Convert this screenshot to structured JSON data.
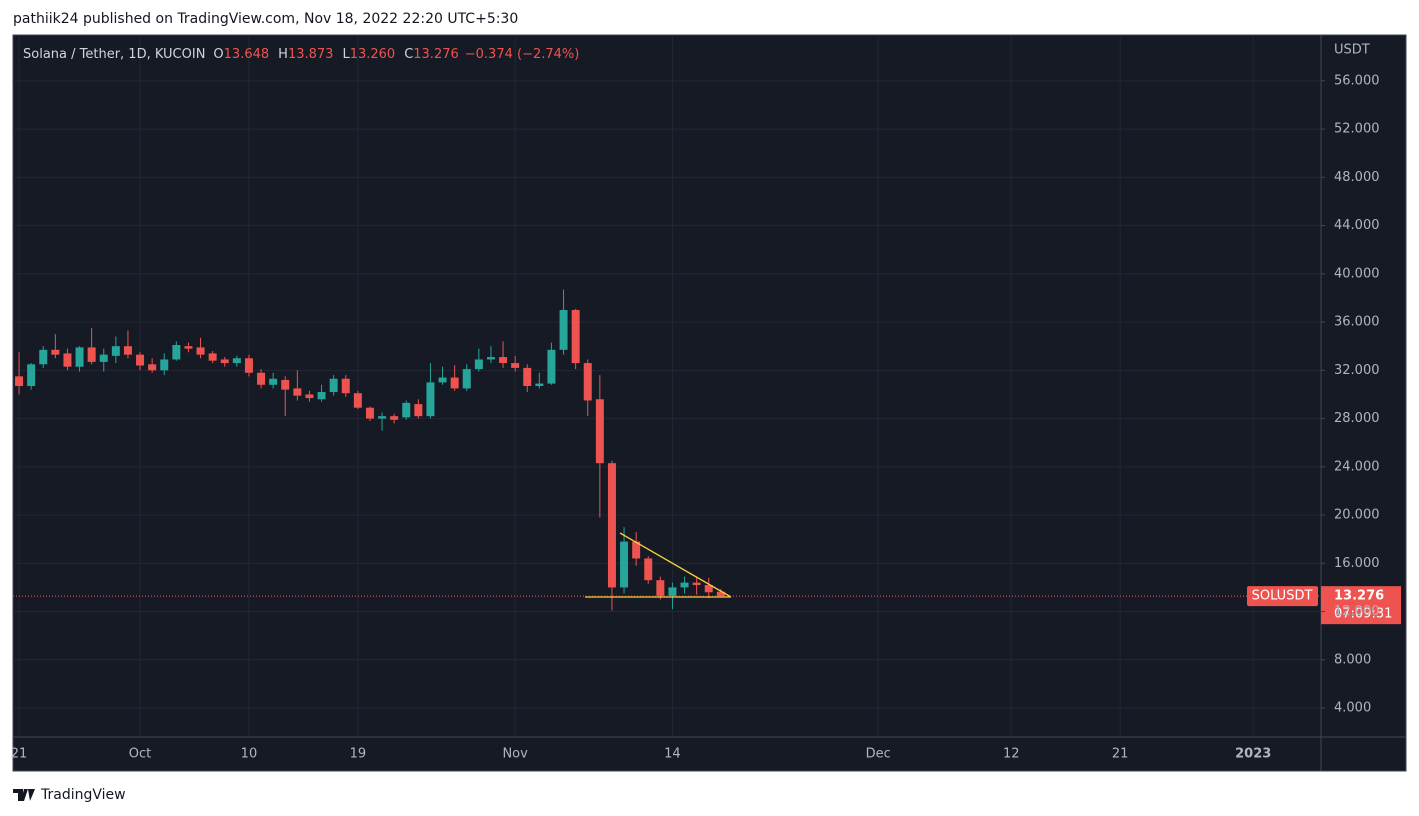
{
  "chart_data": {
    "type": "candlestick",
    "subtitle": "pathiik24 published on TradingView.com, Nov 18, 2022 22:20 UTC+5:30",
    "title": "Solana / Tether, 1D, KUCOIN",
    "ohlc_legend": [
      {
        "key": "O",
        "text": "13.648"
      },
      {
        "key": "H",
        "text": "13.873"
      },
      {
        "key": "L",
        "text": "13.260"
      },
      {
        "key": "C",
        "text": "13.276"
      }
    ],
    "change": "−0.374 (−2.74%)",
    "y_axis_label": "USDT",
    "last_price": {
      "symbol": "SOLUSDT",
      "label": "13.276",
      "countdown": "07:09:31"
    },
    "brand": "TradingView",
    "up_color": "#26a69a",
    "down_color": "#ef5350",
    "grid": true,
    "x": [
      "2022-09-21",
      "2022-09-22",
      "2022-09-23",
      "2022-09-24",
      "2022-09-25",
      "2022-09-26",
      "2022-09-27",
      "2022-09-28",
      "2022-09-29",
      "2022-09-30",
      "2022-10-01",
      "2022-10-02",
      "2022-10-03",
      "2022-10-04",
      "2022-10-05",
      "2022-10-06",
      "2022-10-07",
      "2022-10-08",
      "2022-10-09",
      "2022-10-10",
      "2022-10-11",
      "2022-10-12",
      "2022-10-13",
      "2022-10-14",
      "2022-10-15",
      "2022-10-16",
      "2022-10-17",
      "2022-10-18",
      "2022-10-19",
      "2022-10-20",
      "2022-10-21",
      "2022-10-22",
      "2022-10-23",
      "2022-10-24",
      "2022-10-25",
      "2022-10-26",
      "2022-10-27",
      "2022-10-28",
      "2022-10-29",
      "2022-10-30",
      "2022-10-31",
      "2022-11-01",
      "2022-11-02",
      "2022-11-03",
      "2022-11-04",
      "2022-11-05",
      "2022-11-06",
      "2022-11-07",
      "2022-11-08",
      "2022-11-09",
      "2022-11-10",
      "2022-11-11",
      "2022-11-12",
      "2022-11-13",
      "2022-11-14",
      "2022-11-15",
      "2022-11-16",
      "2022-11-17",
      "2022-11-18"
    ],
    "open": [
      31.5,
      30.7,
      32.5,
      33.7,
      33.4,
      32.3,
      33.9,
      32.7,
      33.2,
      34.0,
      33.3,
      32.5,
      32.0,
      32.9,
      34.0,
      33.9,
      33.4,
      32.9,
      32.6,
      33.0,
      31.8,
      30.8,
      31.2,
      30.5,
      30.0,
      29.6,
      30.2,
      31.3,
      30.1,
      28.9,
      28.0,
      28.2,
      28.1,
      29.2,
      28.2,
      31.0,
      31.4,
      30.5,
      32.1,
      32.9,
      33.1,
      32.6,
      32.2,
      30.7,
      30.9,
      33.7,
      37.0,
      32.6,
      29.6,
      24.3,
      14.0,
      17.8,
      16.4,
      14.6,
      13.3,
      14.0,
      14.4,
      14.2,
      13.648
    ],
    "high": [
      33.5,
      32.6,
      34.0,
      35.0,
      33.8,
      34.0,
      35.5,
      33.8,
      34.8,
      35.3,
      33.5,
      33.0,
      33.4,
      34.4,
      34.3,
      34.7,
      33.6,
      33.1,
      33.2,
      33.3,
      32.1,
      31.8,
      31.5,
      32.0,
      30.3,
      30.8,
      31.6,
      31.6,
      30.3,
      29.0,
      28.5,
      28.4,
      29.5,
      29.6,
      32.6,
      32.3,
      32.4,
      32.5,
      33.8,
      34.0,
      34.4,
      33.2,
      32.5,
      31.8,
      34.3,
      38.7,
      37.1,
      32.9,
      31.6,
      24.5,
      19.0,
      18.6,
      16.6,
      14.9,
      14.4,
      14.9,
      14.9,
      14.8,
      13.873
    ],
    "low": [
      30.0,
      30.4,
      32.2,
      33.0,
      32.0,
      31.9,
      32.5,
      31.9,
      32.6,
      33.0,
      32.0,
      31.8,
      31.6,
      32.8,
      33.5,
      33.0,
      32.6,
      32.3,
      32.3,
      31.5,
      30.5,
      30.5,
      28.2,
      29.5,
      29.4,
      29.4,
      29.9,
      29.8,
      28.8,
      27.8,
      27.0,
      27.6,
      27.9,
      28.0,
      28.0,
      30.8,
      30.3,
      30.3,
      31.9,
      32.6,
      32.2,
      31.9,
      30.2,
      30.5,
      30.8,
      33.3,
      32.1,
      28.2,
      19.8,
      12.1,
      13.5,
      15.8,
      14.3,
      13.0,
      12.2,
      13.5,
      13.4,
      13.1,
      13.26
    ],
    "close": [
      30.7,
      32.5,
      33.7,
      33.3,
      32.3,
      33.9,
      32.7,
      33.3,
      34.0,
      33.3,
      32.4,
      32.0,
      32.9,
      34.1,
      33.8,
      33.3,
      32.8,
      32.6,
      33.0,
      31.8,
      30.8,
      31.3,
      30.4,
      29.9,
      29.7,
      30.2,
      31.3,
      30.1,
      28.9,
      28.0,
      28.2,
      27.9,
      29.3,
      28.2,
      31.0,
      31.4,
      30.5,
      32.1,
      32.9,
      33.1,
      32.6,
      32.2,
      30.7,
      30.9,
      33.7,
      37.0,
      32.6,
      29.5,
      24.3,
      14.0,
      17.8,
      16.4,
      14.6,
      13.3,
      14.0,
      14.4,
      14.2,
      13.6,
      13.276
    ],
    "xlim": [
      "2022-09-20T12:00:00Z",
      "2023-01-06T14:24:00Z"
    ],
    "xticks": [
      {
        "value": "2022-09-21",
        "label": "21"
      },
      {
        "value": "2022-10-01",
        "label": "Oct"
      },
      {
        "value": "2022-10-10",
        "label": "10"
      },
      {
        "value": "2022-10-19",
        "label": "19"
      },
      {
        "value": "2022-11-01",
        "label": "Nov"
      },
      {
        "value": "2022-11-14",
        "label": "14"
      },
      {
        "value": "2022-12-01",
        "label": "Dec"
      },
      {
        "value": "2022-12-12",
        "label": "12"
      },
      {
        "value": "2022-12-21",
        "label": "21"
      },
      {
        "value": "2023-01-01",
        "label": "2023"
      }
    ],
    "ylim": [
      1.6,
      59.8
    ],
    "yticks": [
      {
        "value": 4,
        "label": "4.000"
      },
      {
        "value": 8,
        "label": "8.000"
      },
      {
        "value": 12,
        "label": "12.000"
      },
      {
        "value": 16,
        "label": "16.000"
      },
      {
        "value": 20,
        "label": "20.000"
      },
      {
        "value": 24,
        "label": "24.000"
      },
      {
        "value": 28,
        "label": "28.000"
      },
      {
        "value": 32,
        "label": "32.000"
      },
      {
        "value": 36,
        "label": "36.000"
      },
      {
        "value": 40,
        "label": "40.000"
      },
      {
        "value": 44,
        "label": "44.000"
      },
      {
        "value": 48,
        "label": "48.000"
      },
      {
        "value": 52,
        "label": "52.000"
      },
      {
        "value": 56,
        "label": "56.000"
      }
    ]
  }
}
